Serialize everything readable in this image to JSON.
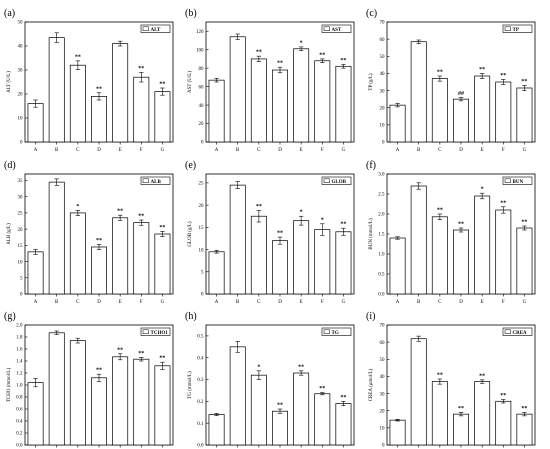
{
  "chart_data": [
    {
      "type": "bar",
      "panel": "(a)",
      "legend": "ALT",
      "ylabel": "ALT (U/L)",
      "categories": [
        "A",
        "B",
        "C",
        "D",
        "E",
        "F",
        "G"
      ],
      "values": [
        16,
        43.5,
        32,
        19,
        41,
        27,
        21
      ],
      "errors": [
        1.5,
        2,
        1.8,
        1.5,
        1,
        2,
        1.5
      ],
      "significance": [
        "",
        "",
        "**",
        "**",
        "",
        "**",
        "**"
      ],
      "ylim": [
        0,
        50
      ],
      "yticks": [
        0,
        10,
        20,
        30,
        40,
        50
      ]
    },
    {
      "type": "bar",
      "panel": "(b)",
      "legend": "AST",
      "ylabel": "AST (U/L)",
      "categories": [
        "A",
        "B",
        "C",
        "D",
        "E",
        "F",
        "G"
      ],
      "values": [
        67,
        114,
        90,
        78,
        101,
        88,
        82
      ],
      "errors": [
        2,
        3,
        3,
        3,
        2,
        2,
        2
      ],
      "significance": [
        "",
        "",
        "**",
        "**",
        "*",
        "**",
        "**"
      ],
      "ylim": [
        0,
        130
      ],
      "yticks": [
        0,
        20,
        40,
        60,
        80,
        100,
        120
      ]
    },
    {
      "type": "bar",
      "panel": "(c)",
      "legend": "TP",
      "ylabel": "TP (g/L)",
      "categories": [
        "A",
        "B",
        "C",
        "D",
        "E",
        "F",
        "G"
      ],
      "values": [
        21.5,
        58.5,
        37,
        25,
        38.5,
        35,
        31.5
      ],
      "errors": [
        1,
        1,
        1.5,
        1,
        1.5,
        1.5,
        1.5
      ],
      "significance": [
        "",
        "",
        "**",
        "##",
        "**",
        "**",
        "**"
      ],
      "ylim": [
        0,
        70
      ],
      "yticks": [
        0,
        10,
        20,
        30,
        40,
        50,
        60,
        70
      ]
    },
    {
      "type": "bar",
      "panel": "(d)",
      "legend": "ALB",
      "ylabel": "ALB (g/L)",
      "categories": [
        "A",
        "B",
        "C",
        "D",
        "E",
        "F",
        "G"
      ],
      "values": [
        13,
        34.5,
        25,
        14.5,
        23.5,
        22,
        18.5
      ],
      "errors": [
        0.8,
        1,
        0.8,
        0.8,
        0.8,
        0.8,
        0.8
      ],
      "significance": [
        "",
        "",
        "*",
        "**",
        "**",
        "**",
        "**"
      ],
      "ylim": [
        0,
        37
      ],
      "yticks": [
        0,
        5,
        10,
        15,
        20,
        25,
        30,
        35
      ]
    },
    {
      "type": "bar",
      "panel": "(e)",
      "legend": "GLOB",
      "ylabel": "GLOB (g/L)",
      "categories": [
        "A",
        "B",
        "C",
        "D",
        "E",
        "F",
        "G"
      ],
      "values": [
        9.5,
        24.5,
        17.5,
        12,
        16.5,
        14.5,
        14
      ],
      "errors": [
        0.3,
        0.8,
        1.3,
        0.8,
        1,
        1.3,
        0.8
      ],
      "significance": [
        "",
        "",
        "**",
        "**",
        "*",
        "*",
        "**"
      ],
      "ylim": [
        0,
        27
      ],
      "yticks": [
        0,
        5,
        10,
        15,
        20,
        25
      ]
    },
    {
      "type": "bar",
      "panel": "(f)",
      "legend": "BUN",
      "ylabel": "BUN (mmol/L)",
      "categories": [
        "A",
        "B",
        "C",
        "D",
        "E",
        "F",
        "G"
      ],
      "values": [
        1.4,
        2.7,
        1.93,
        1.6,
        2.45,
        2.1,
        1.65
      ],
      "errors": [
        0.03,
        0.08,
        0.07,
        0.05,
        0.07,
        0.08,
        0.05
      ],
      "significance": [
        "",
        "",
        "**",
        "**",
        "*",
        "**",
        "**"
      ],
      "ylim": [
        0,
        3.0
      ],
      "yticks": [
        0.0,
        0.5,
        1.0,
        1.5,
        2.0,
        2.5,
        3.0
      ]
    },
    {
      "type": "bar",
      "panel": "(g)",
      "legend": "TCHO1",
      "ylabel": "TCHO (mmol/L)",
      "categories": [
        "A",
        "B",
        "C",
        "D",
        "E",
        "F",
        "G"
      ],
      "values": [
        1.04,
        1.87,
        1.74,
        1.12,
        1.47,
        1.43,
        1.32
      ],
      "errors": [
        0.07,
        0.03,
        0.04,
        0.06,
        0.05,
        0.03,
        0.06
      ],
      "significance": [
        "",
        "",
        "",
        "**",
        "**",
        "**",
        "**"
      ],
      "ylim": [
        0,
        2.0
      ],
      "yticks": [
        0.0,
        0.2,
        0.4,
        0.6,
        0.8,
        1.0,
        1.2,
        1.4,
        1.6,
        1.8,
        2.0
      ]
    },
    {
      "type": "bar",
      "panel": "(h)",
      "legend": "TG",
      "ylabel": "TG (mmol/L)",
      "categories": [
        "A",
        "B",
        "C",
        "D",
        "E",
        "F",
        "G"
      ],
      "values": [
        0.14,
        0.45,
        0.32,
        0.155,
        0.33,
        0.235,
        0.19
      ],
      "errors": [
        0.005,
        0.025,
        0.02,
        0.01,
        0.01,
        0.005,
        0.01
      ],
      "significance": [
        "",
        "",
        "*",
        "**",
        "**",
        "**",
        "**"
      ],
      "ylim": [
        0,
        0.55
      ],
      "yticks": [
        0.0,
        0.1,
        0.2,
        0.3,
        0.4,
        0.5
      ]
    },
    {
      "type": "bar",
      "panel": "(i)",
      "legend": "CREA",
      "ylabel": "CREA (μmol/L)",
      "categories": [
        "A",
        "B",
        "C",
        "D",
        "E",
        "F",
        "G"
      ],
      "values": [
        14.5,
        62,
        37,
        18,
        37,
        25.5,
        18
      ],
      "errors": [
        0.5,
        1.5,
        1.5,
        1,
        1,
        1,
        1
      ],
      "significance": [
        "",
        "",
        "**",
        "**",
        "**",
        "**",
        "**"
      ],
      "ylim": [
        0,
        70
      ],
      "yticks": [
        0,
        10,
        20,
        30,
        40,
        50,
        60,
        70
      ]
    }
  ]
}
